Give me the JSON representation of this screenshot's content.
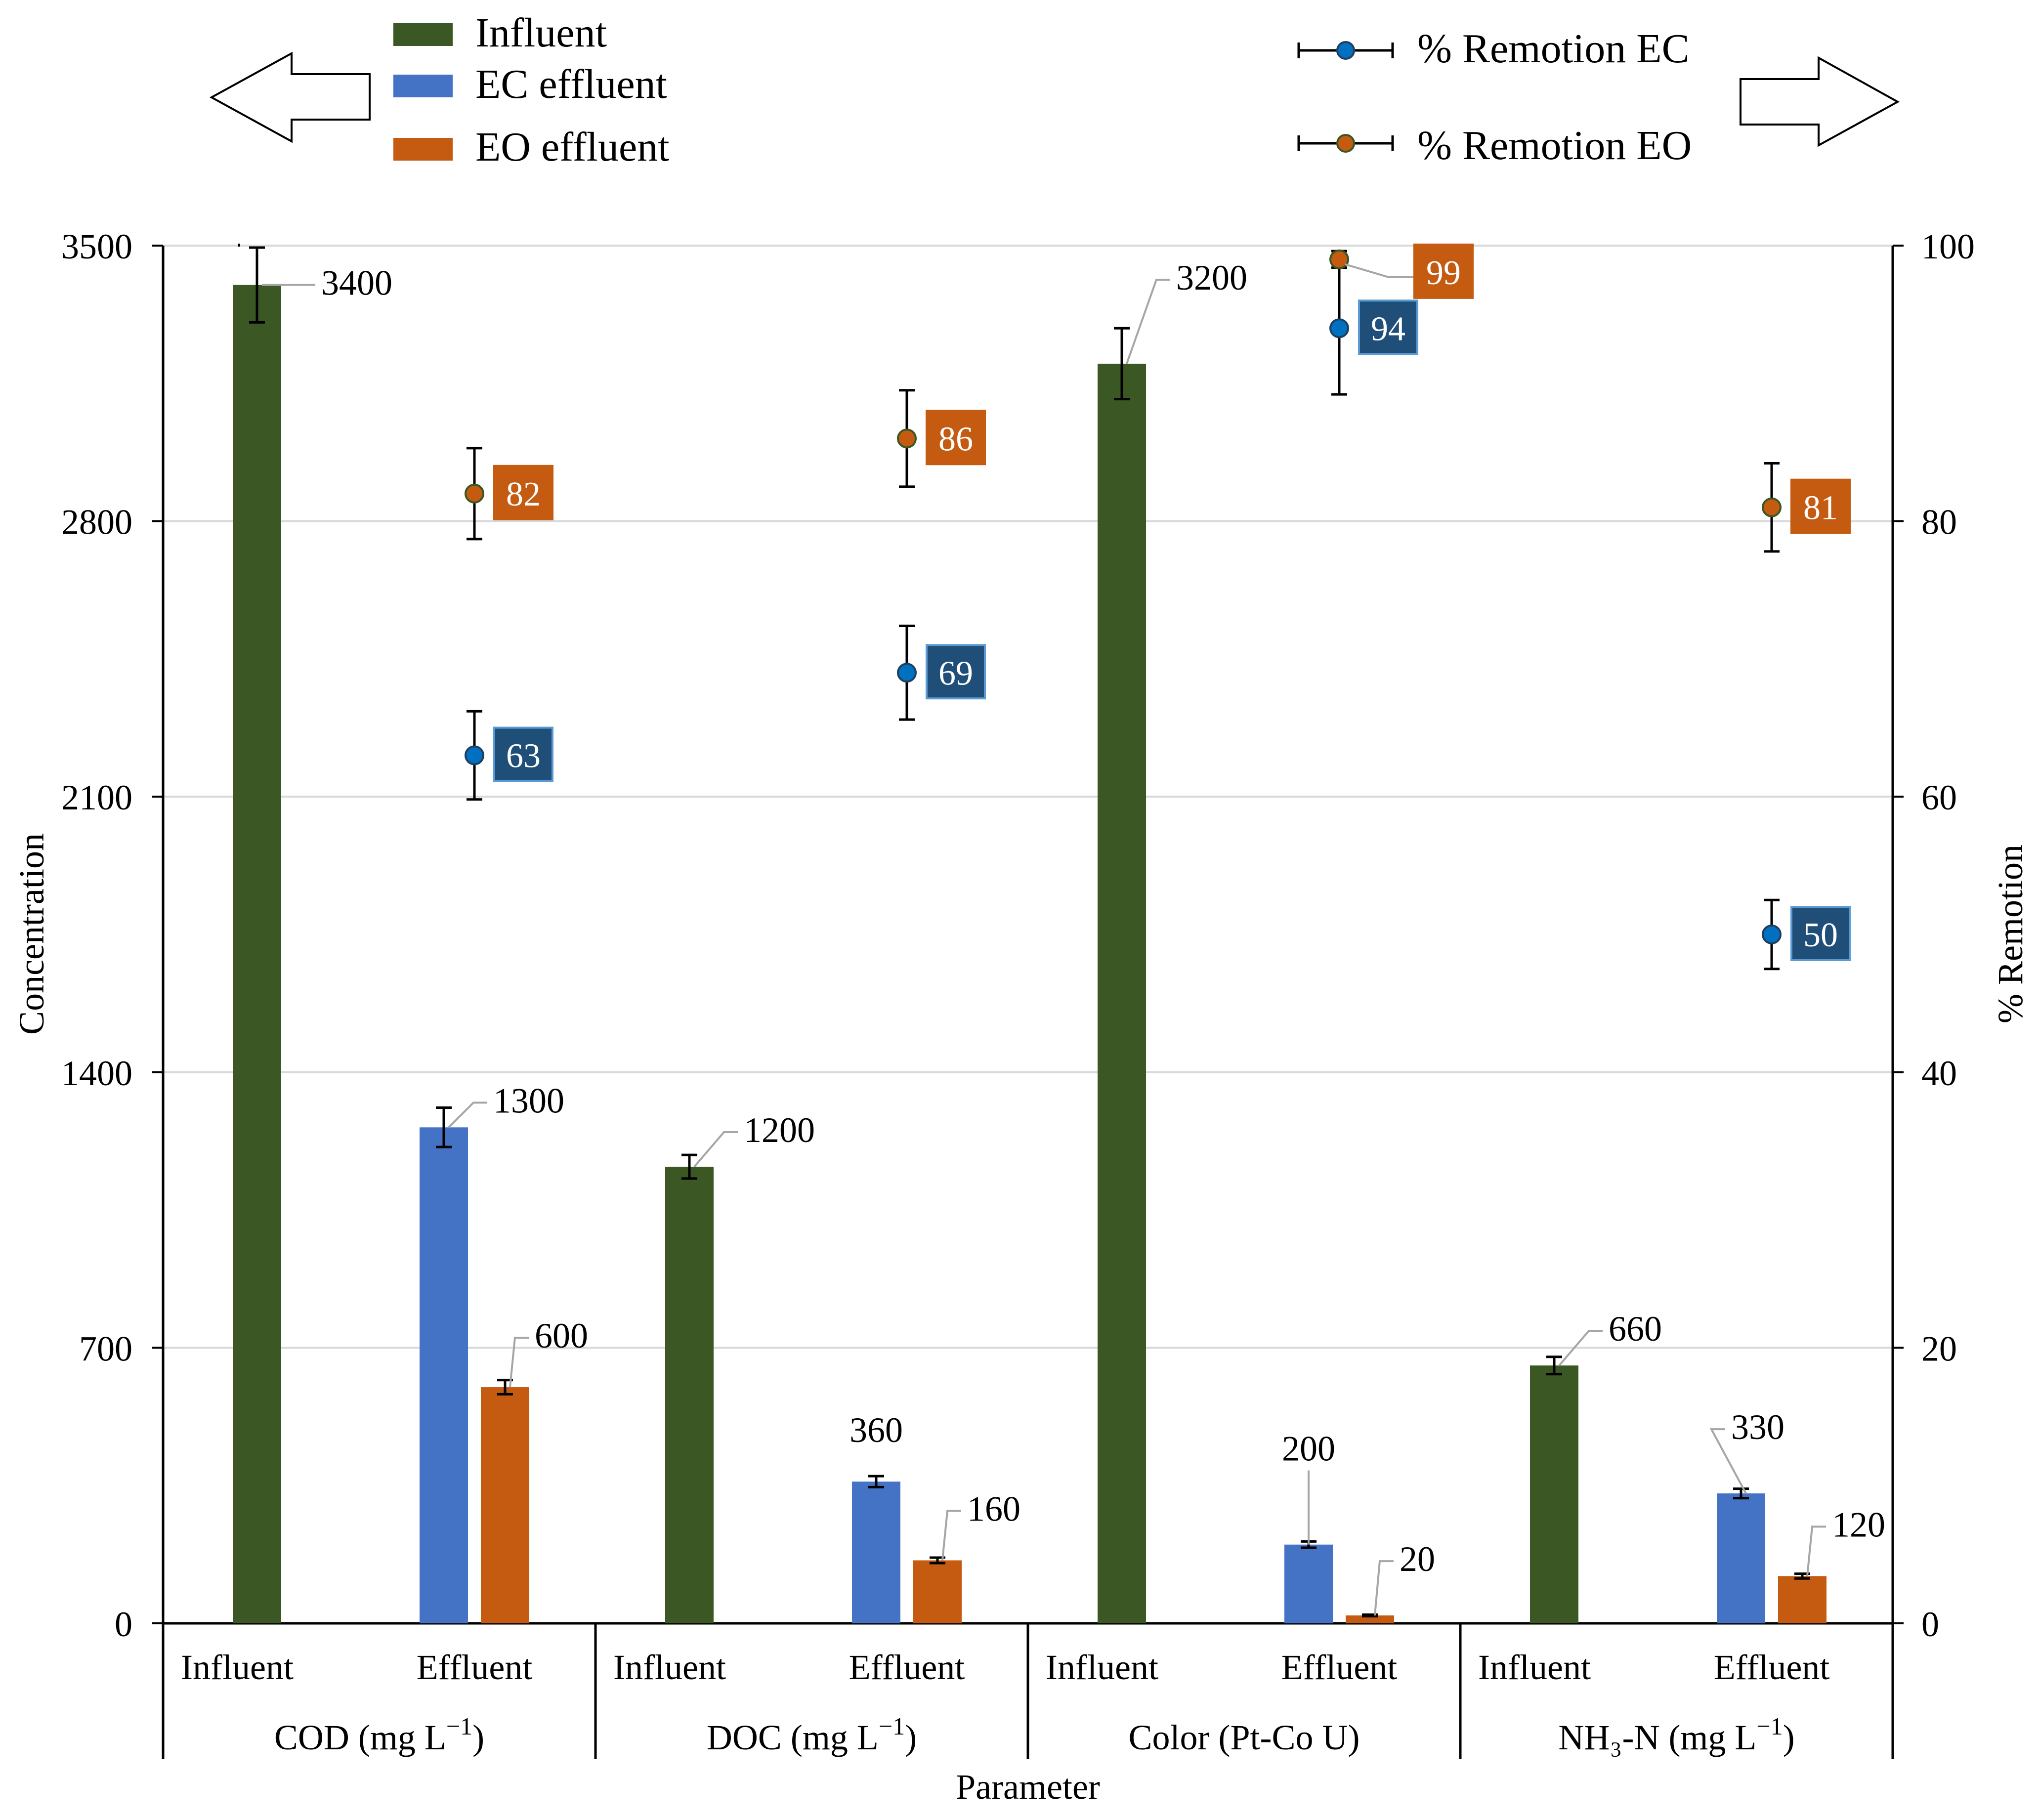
{
  "colors": {
    "influent": "#3b5724",
    "ec": "#4472c4",
    "eo": "#c55a11",
    "ec_marker": "#0070c0",
    "eo_marker": "#c55a11",
    "ec_label_bg": "#1f4e79",
    "eo_label_bg": "#c55a11",
    "grid": "#d9d9d9"
  },
  "legend": {
    "influent": "Influent",
    "ec_effluent": "EC effluent",
    "eo_effluent": "EO effluent",
    "removal_ec": "% Remotion EC",
    "removal_eo": "% Remotion EO",
    "left_arrow_icon": "arrow-left-icon",
    "right_arrow_icon": "arrow-right-icon"
  },
  "chart_data": {
    "type": "bar",
    "x_label": "Parameter",
    "y_label": "Concentration",
    "y2_label": "% Remotion",
    "ylim": [
      0,
      3500
    ],
    "y_ticks": [
      0,
      700,
      1400,
      2100,
      2800,
      3500
    ],
    "y2lim": [
      0,
      100
    ],
    "y2_ticks": [
      0,
      20,
      40,
      60,
      80,
      100
    ],
    "sub_categories": [
      "Influent",
      "Effluent"
    ],
    "groups": [
      {
        "name": "COD",
        "unit_label": "(mg L",
        "unit_sup": "−1",
        "unit_close": ")",
        "influent": 3400,
        "influent_err": 95,
        "influent_label": "3400",
        "ec": 1260,
        "ec_err": 50,
        "ec_label": "1300",
        "eo": 600,
        "eo_err": 18,
        "eo_label": "600",
        "removal_ec": 63,
        "removal_ec_err": 3.2,
        "removal_eo": 82,
        "removal_eo_err": 3.3
      },
      {
        "name": "DOC",
        "unit_label": "(mg L",
        "unit_sup": "−1",
        "unit_close": ")",
        "influent": 1160,
        "influent_err": 30,
        "influent_label": "1200",
        "ec": 360,
        "ec_err": 14,
        "ec_label": "360",
        "eo": 160,
        "eo_err": 7,
        "eo_label": "160",
        "removal_ec": 69,
        "removal_ec_err": 3.4,
        "removal_eo": 86,
        "removal_eo_err": 3.5
      },
      {
        "name": "Color",
        "unit_label": "(Pt-Co U)",
        "unit_sup": "",
        "unit_close": "",
        "influent": 3200,
        "influent_err": 90,
        "influent_label": "3200",
        "ec": 200,
        "ec_err": 8,
        "ec_label": "200",
        "eo": 20,
        "eo_err": 2,
        "eo_label": "20",
        "removal_ec": 94,
        "removal_ec_err": 4.8,
        "removal_eo": 99,
        "removal_eo_err": 0.6
      },
      {
        "name": "NH₃-N",
        "unit_label": "(mg L",
        "unit_sup": "−1",
        "unit_close": ")",
        "influent": 655,
        "influent_err": 22,
        "influent_label": "660",
        "ec": 330,
        "ec_err": 12,
        "ec_label": "330",
        "eo": 120,
        "eo_err": 6,
        "eo_label": "120",
        "removal_ec": 50,
        "removal_ec_err": 2.5,
        "removal_eo": 81,
        "removal_eo_err": 3.2
      }
    ]
  }
}
